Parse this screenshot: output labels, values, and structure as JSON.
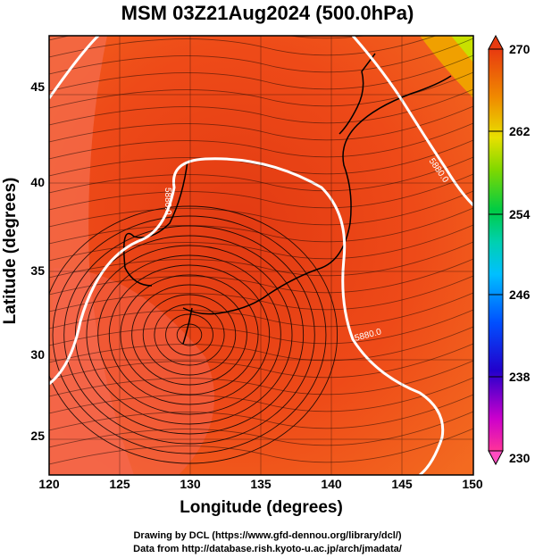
{
  "title": "MSM 03Z21Aug2024 (500.0hPa)",
  "xlabel": "Longitude (degrees)",
  "ylabel": "Latitude  (degrees)",
  "x_ticks": [
    "120",
    "125",
    "130",
    "135",
    "140",
    "145",
    "150"
  ],
  "y_ticks": [
    "45",
    "40",
    "35",
    "30",
    "25"
  ],
  "colorbar_ticks": [
    "270",
    "262",
    "254",
    "246",
    "238",
    "230"
  ],
  "contour_labels": [
    "5880.0",
    "5880.0",
    "5880.0"
  ],
  "credit_line1": "Drawing by DCL (https://www.gfd-dennou.org/library/dcl/)",
  "credit_line2": "Data from http://database.rish.kyoto-u.ac.jp/arch/jmadata/",
  "map": {
    "lon_range": [
      120,
      150
    ],
    "lat_range": [
      22.5,
      47.5
    ],
    "field": "temperature",
    "field_range": [
      230,
      270
    ],
    "colors": {
      "warm_high": "#e83a10",
      "warm_mid": "#f05a24",
      "warm_low": "#f86a50",
      "contour": "#ffffff",
      "streamline": "#000000"
    },
    "colorbar": [
      "#ff4c8a",
      "#ff66c4",
      "#cc00cc",
      "#6a00d0",
      "#0000cc",
      "#0060ff",
      "#00aaff",
      "#00d8d8",
      "#00c864",
      "#30d030",
      "#a6d800",
      "#d8e000",
      "#f0c000",
      "#f08000",
      "#f04000",
      "#e83a10"
    ]
  }
}
